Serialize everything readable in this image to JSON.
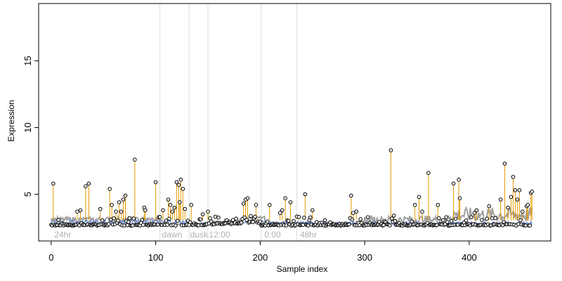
{
  "chart_data": {
    "type": "scatter",
    "title": "",
    "xlabel": "Sample index",
    "ylabel": "Expression",
    "xlim": [
      -12,
      478
    ],
    "ylim": [
      1.5,
      19.3
    ],
    "x_ticks": [
      0,
      100,
      200,
      300,
      400
    ],
    "y_ticks": [
      5,
      10,
      15
    ],
    "grid": false,
    "legend": "none",
    "colors": {
      "baseline_line": "#6f8fcf",
      "smooth_line": "#a0a0a0",
      "stem": "#e69a00",
      "point_edge": "#000000",
      "point_fill": "#ffffff",
      "divider": "#dddddd",
      "region_label": "#b0b0b0"
    },
    "point_count": 461,
    "baseline": 2.65,
    "region_lines": [
      104,
      132,
      150,
      201,
      235
    ],
    "region_labels": [
      {
        "x": 3,
        "text": "24hr"
      },
      {
        "x": 106,
        "text": "dawn"
      },
      {
        "x": 133,
        "text": "dusk"
      },
      {
        "x": 151,
        "text": "12:00"
      },
      {
        "x": 204,
        "text": "0:00"
      },
      {
        "x": 238,
        "text": "48hr"
      }
    ],
    "peaks": [
      {
        "x": 2,
        "y": 5.8
      },
      {
        "x": 25,
        "y": 3.7
      },
      {
        "x": 28,
        "y": 3.8
      },
      {
        "x": 33,
        "y": 5.6
      },
      {
        "x": 36,
        "y": 5.8
      },
      {
        "x": 47,
        "y": 3.9
      },
      {
        "x": 56,
        "y": 5.4
      },
      {
        "x": 58,
        "y": 4.2
      },
      {
        "x": 60,
        "y": 3.2
      },
      {
        "x": 62,
        "y": 3.7
      },
      {
        "x": 65,
        "y": 4.4
      },
      {
        "x": 67,
        "y": 3.7
      },
      {
        "x": 69,
        "y": 4.6
      },
      {
        "x": 71,
        "y": 4.9
      },
      {
        "x": 75,
        "y": 3.2
      },
      {
        "x": 80,
        "y": 7.6
      },
      {
        "x": 89,
        "y": 4.0
      },
      {
        "x": 90,
        "y": 3.8
      },
      {
        "x": 100,
        "y": 5.9
      },
      {
        "x": 104,
        "y": 3.3
      },
      {
        "x": 107,
        "y": 3.8
      },
      {
        "x": 112,
        "y": 4.6
      },
      {
        "x": 114,
        "y": 4.2
      },
      {
        "x": 116,
        "y": 3.7
      },
      {
        "x": 118,
        "y": 4.0
      },
      {
        "x": 120,
        "y": 5.9
      },
      {
        "x": 122,
        "y": 5.7
      },
      {
        "x": 123,
        "y": 4.4
      },
      {
        "x": 124,
        "y": 6.1
      },
      {
        "x": 126,
        "y": 5.4
      },
      {
        "x": 128,
        "y": 3.9
      },
      {
        "x": 134,
        "y": 4.2
      },
      {
        "x": 145,
        "y": 3.5
      },
      {
        "x": 150,
        "y": 3.7
      },
      {
        "x": 152,
        "y": 3.2
      },
      {
        "x": 184,
        "y": 4.3
      },
      {
        "x": 186,
        "y": 4.6
      },
      {
        "x": 188,
        "y": 4.7
      },
      {
        "x": 196,
        "y": 4.2
      },
      {
        "x": 209,
        "y": 4.2
      },
      {
        "x": 219,
        "y": 3.6
      },
      {
        "x": 221,
        "y": 3.8
      },
      {
        "x": 224,
        "y": 4.7
      },
      {
        "x": 229,
        "y": 4.4
      },
      {
        "x": 232,
        "y": 3.0
      },
      {
        "x": 237,
        "y": 3.3
      },
      {
        "x": 243,
        "y": 5.0
      },
      {
        "x": 250,
        "y": 3.8
      },
      {
        "x": 287,
        "y": 4.9
      },
      {
        "x": 289,
        "y": 3.6
      },
      {
        "x": 292,
        "y": 3.7
      },
      {
        "x": 325,
        "y": 8.3
      },
      {
        "x": 328,
        "y": 3.4
      },
      {
        "x": 348,
        "y": 4.2
      },
      {
        "x": 352,
        "y": 4.8
      },
      {
        "x": 355,
        "y": 3.7
      },
      {
        "x": 361,
        "y": 6.6
      },
      {
        "x": 370,
        "y": 4.2
      },
      {
        "x": 385,
        "y": 5.8
      },
      {
        "x": 390,
        "y": 6.1
      },
      {
        "x": 391,
        "y": 4.7
      },
      {
        "x": 405,
        "y": 3.6
      },
      {
        "x": 407,
        "y": 3.8
      },
      {
        "x": 419,
        "y": 4.1
      },
      {
        "x": 430,
        "y": 4.6
      },
      {
        "x": 434,
        "y": 7.3
      },
      {
        "x": 437,
        "y": 4.0
      },
      {
        "x": 440,
        "y": 4.8
      },
      {
        "x": 442,
        "y": 6.3
      },
      {
        "x": 444,
        "y": 5.3
      },
      {
        "x": 446,
        "y": 4.6
      },
      {
        "x": 448,
        "y": 5.3
      },
      {
        "x": 451,
        "y": 3.7
      },
      {
        "x": 455,
        "y": 4.1
      },
      {
        "x": 456,
        "y": 4.2
      },
      {
        "x": 459,
        "y": 5.1
      },
      {
        "x": 460,
        "y": 5.2
      }
    ]
  }
}
